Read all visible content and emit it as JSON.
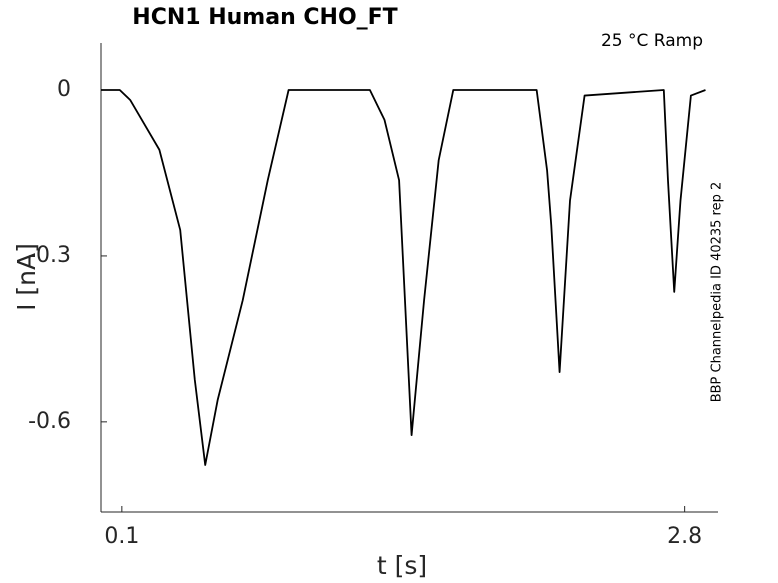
{
  "chart_data": {
    "type": "line",
    "title": "HCN1  Human  CHO_FT",
    "annotation": "25 °C  Ramp",
    "side_note": "BBP Channelpedia ID 40235 rep 2",
    "x_label": "t [s]",
    "y_label": "I [nA]",
    "x": [
      0,
      0.09,
      0.14,
      0.28,
      0.38,
      0.45,
      0.5,
      0.56,
      0.68,
      0.8,
      0.9,
      1.29,
      1.36,
      1.43,
      1.49,
      1.55,
      1.62,
      1.69,
      2.09,
      2.14,
      2.16,
      2.2,
      2.25,
      2.32,
      2.7,
      2.72,
      2.75,
      2.78,
      2.83,
      2.9
    ],
    "values": [
      0,
      0,
      -0.018,
      -0.108,
      -0.253,
      -0.524,
      -0.678,
      -0.56,
      -0.38,
      -0.163,
      0,
      0,
      -0.054,
      -0.163,
      -0.624,
      -0.38,
      -0.127,
      0,
      0,
      -0.145,
      -0.244,
      -0.51,
      -0.2,
      -0.01,
      0,
      -0.163,
      -0.365,
      -0.2,
      -0.01,
      0
    ],
    "color": "#000000",
    "xlim": [
      0,
      2.96
    ],
    "ylim": [
      -0.763,
      0.085
    ],
    "xticks": [
      0.1,
      2.8
    ],
    "yticks": [
      0,
      -0.3,
      -0.6
    ],
    "grid": false
  }
}
